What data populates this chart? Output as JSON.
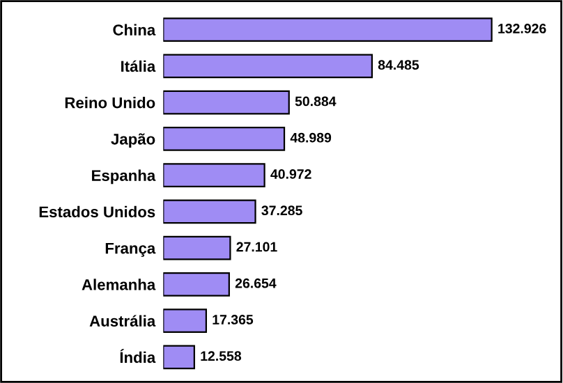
{
  "chart_data": {
    "type": "bar",
    "orientation": "horizontal",
    "categories": [
      "China",
      "Itália",
      "Reino Unido",
      "Japão",
      "Espanha",
      "Estados Unidos",
      "França",
      "Alemanha",
      "Austrália",
      "Índia"
    ],
    "values": [
      132926,
      84485,
      50884,
      48989,
      40972,
      37285,
      27101,
      26654,
      17365,
      12558
    ],
    "value_labels": [
      "132.926",
      "84.485",
      "50.884",
      "48.989",
      "40.972",
      "37.285",
      "27.101",
      "26.654",
      "17.365",
      "12.558"
    ],
    "color": "#9f8cf4"
  }
}
